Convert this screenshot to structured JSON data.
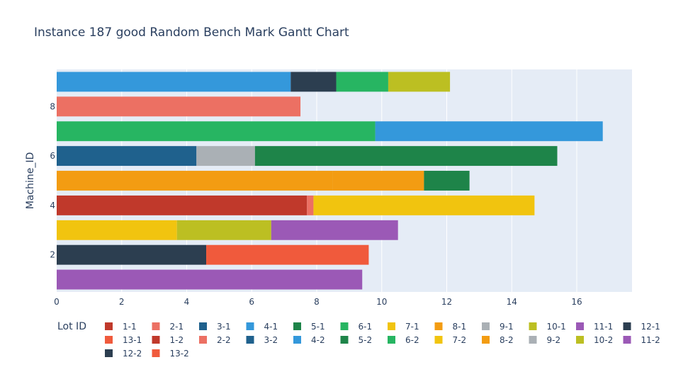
{
  "chart_data": {
    "type": "bar",
    "orientation": "horizontal-gantt",
    "title": "Instance 187 good Random Bench Mark Gantt Chart",
    "ylabel": "Machine_ID",
    "xlabel": "",
    "xlim": [
      0,
      17.7
    ],
    "ylim": [
      0.5,
      9.5
    ],
    "x_ticks": [
      0,
      2,
      4,
      6,
      8,
      10,
      12,
      14,
      16
    ],
    "y_ticks": [
      2,
      4,
      6,
      8
    ],
    "grid": true,
    "legend_title": "Lot ID",
    "legend_position": "bottom",
    "colors": {
      "1": "#c0392b",
      "2": "#ec7063",
      "3": "#1f618d",
      "4": "#3498db",
      "5": "#1e8449",
      "6": "#27b562",
      "7": "#f1c40f",
      "8": "#f39c12",
      "9": "#aab0b5",
      "10": "#bcbf22",
      "11": "#9b59b6",
      "12": "#2c3e50",
      "13": "#f05a3c"
    },
    "legend": [
      {
        "label": "1-1",
        "lot": "1"
      },
      {
        "label": "2-1",
        "lot": "2"
      },
      {
        "label": "3-1",
        "lot": "3"
      },
      {
        "label": "4-1",
        "lot": "4"
      },
      {
        "label": "5-1",
        "lot": "5"
      },
      {
        "label": "6-1",
        "lot": "6"
      },
      {
        "label": "7-1",
        "lot": "7"
      },
      {
        "label": "8-1",
        "lot": "8"
      },
      {
        "label": "9-1",
        "lot": "9"
      },
      {
        "label": "10-1",
        "lot": "10"
      },
      {
        "label": "11-1",
        "lot": "11"
      },
      {
        "label": "12-1",
        "lot": "12"
      },
      {
        "label": "13-1",
        "lot": "13"
      },
      {
        "label": "1-2",
        "lot": "1"
      },
      {
        "label": "2-2",
        "lot": "2"
      },
      {
        "label": "3-2",
        "lot": "3"
      },
      {
        "label": "4-2",
        "lot": "4"
      },
      {
        "label": "5-2",
        "lot": "5"
      },
      {
        "label": "6-2",
        "lot": "6"
      },
      {
        "label": "7-2",
        "lot": "7"
      },
      {
        "label": "8-2",
        "lot": "8"
      },
      {
        "label": "9-2",
        "lot": "9"
      },
      {
        "label": "10-2",
        "lot": "10"
      },
      {
        "label": "11-2",
        "lot": "11"
      },
      {
        "label": "12-2",
        "lot": "12"
      },
      {
        "label": "13-2",
        "lot": "13"
      }
    ],
    "tasks": [
      {
        "machine": 9,
        "lot": "4",
        "start": 0,
        "end": 7.2
      },
      {
        "machine": 9,
        "lot": "12",
        "start": 7.2,
        "end": 8.6
      },
      {
        "machine": 9,
        "lot": "6",
        "start": 8.6,
        "end": 10.2
      },
      {
        "machine": 9,
        "lot": "10",
        "start": 10.2,
        "end": 12.1
      },
      {
        "machine": 8,
        "lot": "2",
        "start": 0,
        "end": 7.5
      },
      {
        "machine": 7,
        "lot": "6",
        "start": 0,
        "end": 9.8
      },
      {
        "machine": 7,
        "lot": "4",
        "start": 9.8,
        "end": 16.8
      },
      {
        "machine": 6,
        "lot": "3",
        "start": 0,
        "end": 4.3
      },
      {
        "machine": 6,
        "lot": "9",
        "start": 4.3,
        "end": 6.1
      },
      {
        "machine": 6,
        "lot": "5",
        "start": 6.1,
        "end": 15.4
      },
      {
        "machine": 5,
        "lot": "8",
        "start": 0,
        "end": 8.5
      },
      {
        "machine": 5,
        "lot": "8",
        "start": 8.5,
        "end": 11.3
      },
      {
        "machine": 5,
        "lot": "5",
        "start": 11.3,
        "end": 12.7
      },
      {
        "machine": 4,
        "lot": "1",
        "start": 0,
        "end": 7.7
      },
      {
        "machine": 4,
        "lot": "2",
        "start": 7.7,
        "end": 7.9
      },
      {
        "machine": 4,
        "lot": "7",
        "start": 7.9,
        "end": 14.7
      },
      {
        "machine": 3,
        "lot": "7",
        "start": 0,
        "end": 3.7
      },
      {
        "machine": 3,
        "lot": "10",
        "start": 3.7,
        "end": 6.6
      },
      {
        "machine": 3,
        "lot": "11",
        "start": 6.6,
        "end": 10.5
      },
      {
        "machine": 2,
        "lot": "12",
        "start": 0,
        "end": 4.6
      },
      {
        "machine": 2,
        "lot": "13",
        "start": 4.6,
        "end": 9.6
      },
      {
        "machine": 1,
        "lot": "11",
        "start": 0,
        "end": 9.4
      }
    ]
  }
}
